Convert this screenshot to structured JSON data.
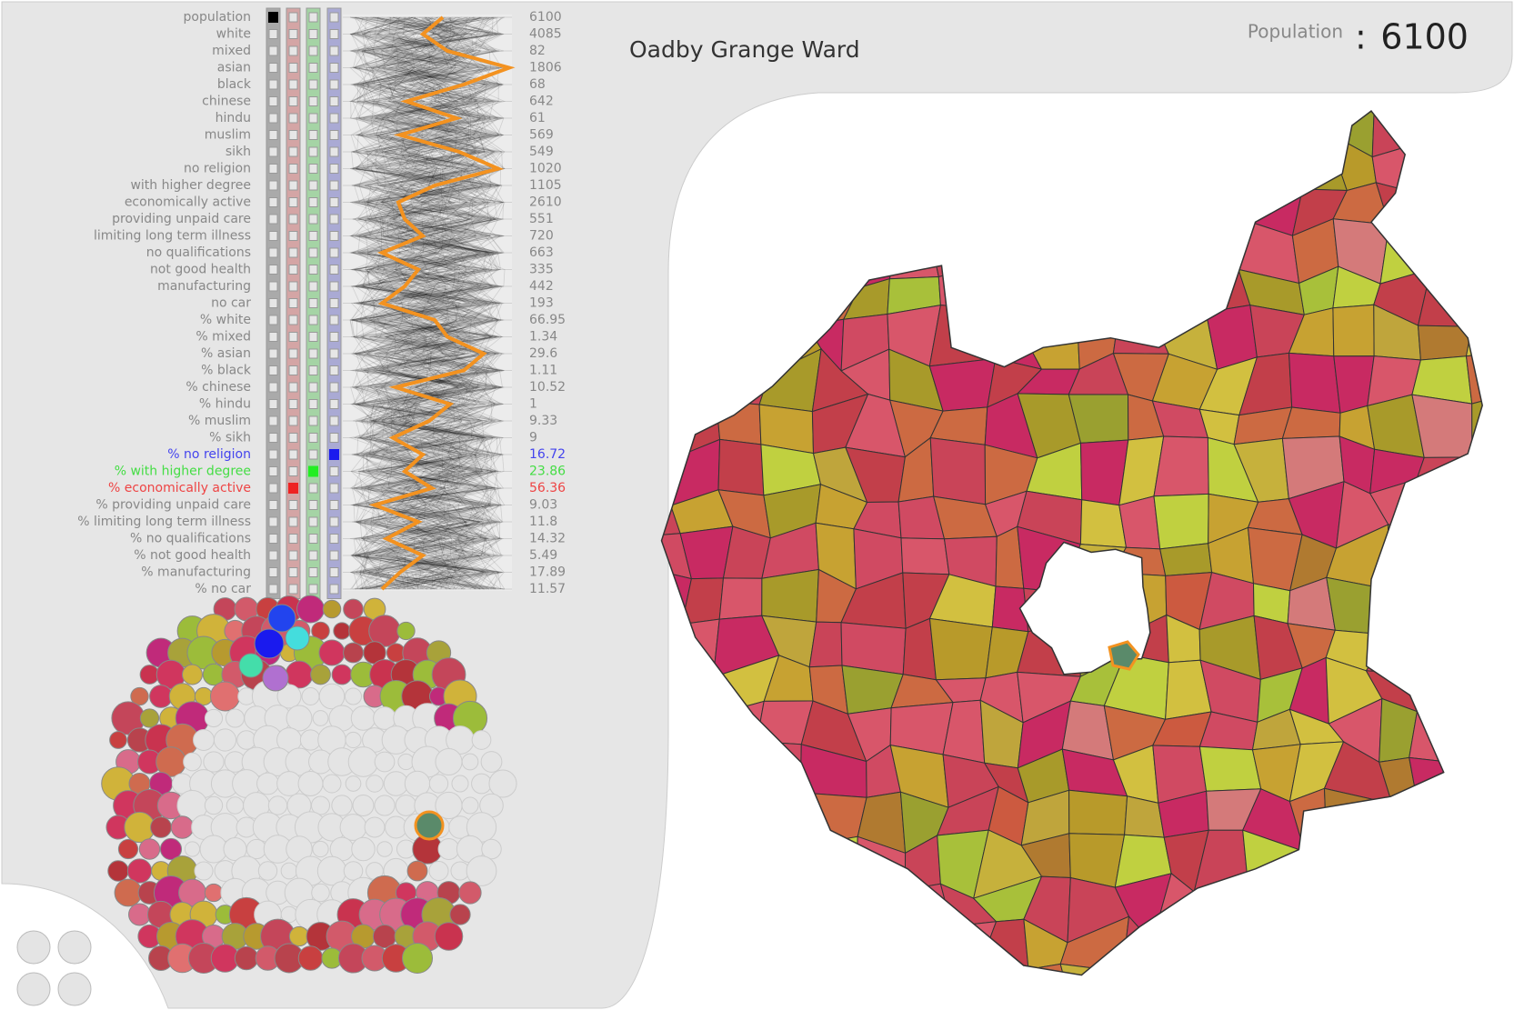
{
  "header": {
    "title": "Oadby Grange Ward",
    "population_label": "Population",
    "separator": ":",
    "population_value": 6100
  },
  "variables": [
    {
      "label": "population",
      "value": 6100,
      "checked_column": 0,
      "check_color": "#000000"
    },
    {
      "label": "white",
      "value": 4085
    },
    {
      "label": "mixed",
      "value": 82
    },
    {
      "label": "asian",
      "value": 1806
    },
    {
      "label": "black",
      "value": 68
    },
    {
      "label": "chinese",
      "value": 642
    },
    {
      "label": "hindu",
      "value": 61
    },
    {
      "label": "muslim",
      "value": 569
    },
    {
      "label": "sikh",
      "value": 549
    },
    {
      "label": "no religion",
      "value": 1020
    },
    {
      "label": "with higher degree",
      "value": 1105
    },
    {
      "label": "economically active",
      "value": 2610
    },
    {
      "label": "providing unpaid care",
      "value": 551
    },
    {
      "label": "limiting long term illness",
      "value": 720
    },
    {
      "label": "no qualifications",
      "value": 663
    },
    {
      "label": "not good health",
      "value": 335
    },
    {
      "label": "manufacturing",
      "value": 442
    },
    {
      "label": "no car",
      "value": 193
    },
    {
      "label": "% white",
      "value": 66.95
    },
    {
      "label": "% mixed",
      "value": 1.34
    },
    {
      "label": "% asian",
      "value": 29.6
    },
    {
      "label": "% black",
      "value": 1.11
    },
    {
      "label": "% chinese",
      "value": 10.52
    },
    {
      "label": "% hindu",
      "value": 1
    },
    {
      "label": "% muslim",
      "value": 9.33
    },
    {
      "label": "% sikh",
      "value": 9
    },
    {
      "label": "% no religion",
      "value": 16.72,
      "color": "#4444ee",
      "checked_column": 3,
      "check_color": "#1a1aee"
    },
    {
      "label": "% with higher degree",
      "value": 23.86,
      "color": "#44dd44",
      "checked_column": 2,
      "check_color": "#22ee22"
    },
    {
      "label": "% economically active",
      "value": 56.36,
      "color": "#ee4444",
      "checked_column": 1,
      "check_color": "#ee2222"
    },
    {
      "label": "% providing unpaid care",
      "value": 9.03
    },
    {
      "label": "% limiting long term illness",
      "value": 11.8
    },
    {
      "label": "% no qualifications",
      "value": 14.32
    },
    {
      "label": "% not good health",
      "value": 5.49
    },
    {
      "label": "% manufacturing",
      "value": 17.89
    },
    {
      "label": "% no car",
      "value": 11.57
    }
  ]
}
